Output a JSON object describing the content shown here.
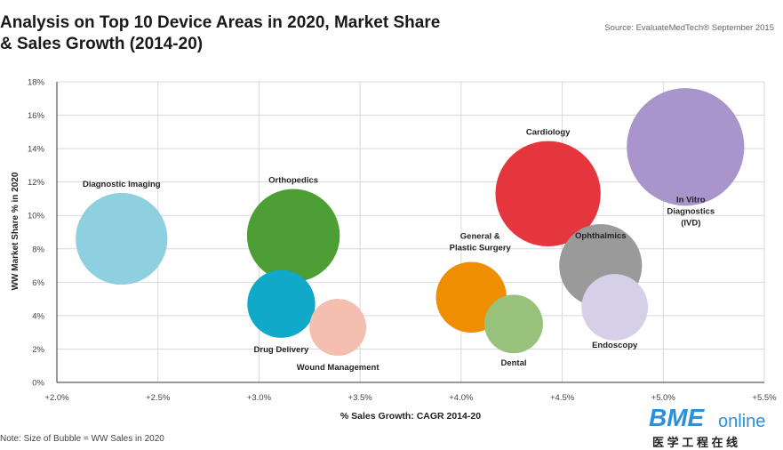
{
  "header": {
    "title_line1": "Analysis on Top 10 Device Areas in 2020, Market Share",
    "title_line2": "& Sales Growth (2014-20)",
    "source": "Source: EvaluateMedTech® September 2015"
  },
  "footer": {
    "note": "Note: Size of Bubble = WW Sales in 2020"
  },
  "logo": {
    "brand": "BME",
    "brand_suffix": "online",
    "tagline": "医 学 工 程 在 线",
    "brand_color": "#2d8fd5"
  },
  "chart_data": {
    "type": "scatter",
    "bubble": true,
    "xlabel": "% Sales Growth: CAGR 2014-20",
    "ylabel": "WW Market Share % in 2020",
    "xlim": [
      2.0,
      5.5
    ],
    "ylim": [
      0,
      18
    ],
    "x_ticks": [
      2.0,
      2.5,
      3.0,
      3.5,
      4.0,
      4.5,
      5.0,
      5.5
    ],
    "x_tick_labels": [
      "+2.0%",
      "+2.5%",
      "+3.0%",
      "+3.5%",
      "+4.0%",
      "+4.5%",
      "+5.0%",
      "+5.5%"
    ],
    "y_ticks": [
      0,
      2,
      4,
      6,
      8,
      10,
      12,
      14,
      16,
      18
    ],
    "y_tick_labels": [
      "0%",
      "2%",
      "4%",
      "6%",
      "8%",
      "10%",
      "12%",
      "14%",
      "16%",
      "18%"
    ],
    "grid": true,
    "size_encoding": "WW Sales in 2020",
    "points": [
      {
        "name": "Diagnostic Imaging",
        "label_lines": [
          "Diagnostic Imaging"
        ],
        "x": 2.32,
        "y": 8.6,
        "size": 8.6,
        "color": "#8ecfe0"
      },
      {
        "name": "Orthopedics",
        "label_lines": [
          "Orthopedics"
        ],
        "x": 3.17,
        "y": 8.8,
        "size": 8.8,
        "color": "#4c9e35"
      },
      {
        "name": "Drug Delivery",
        "label_lines": [
          "Drug Delivery"
        ],
        "x": 3.11,
        "y": 4.7,
        "size": 4.7,
        "color": "#10a9c9"
      },
      {
        "name": "Wound Management",
        "label_lines": [
          "Wound Management"
        ],
        "x": 3.39,
        "y": 3.3,
        "size": 3.3,
        "color": "#f4bfb0"
      },
      {
        "name": "General & Plastic Surgery",
        "label_lines": [
          "General &",
          "Plastic Surgery"
        ],
        "x": 4.05,
        "y": 5.1,
        "size": 5.1,
        "color": "#ee8e00"
      },
      {
        "name": "Dental",
        "label_lines": [
          "Dental"
        ],
        "x": 4.26,
        "y": 3.5,
        "size": 3.5,
        "color": "#98c17c"
      },
      {
        "name": "Cardiology",
        "label_lines": [
          "Cardiology"
        ],
        "x": 4.43,
        "y": 11.3,
        "size": 11.3,
        "color": "#e5353d"
      },
      {
        "name": "Ophthalmics",
        "label_lines": [
          "Ophthalmics"
        ],
        "x": 4.69,
        "y": 7.0,
        "size": 7.0,
        "color": "#9a9a9a"
      },
      {
        "name": "Endoscopy",
        "label_lines": [
          "Endoscopy"
        ],
        "x": 4.76,
        "y": 4.5,
        "size": 4.5,
        "color": "#d6cfe8"
      },
      {
        "name": "In Vitro Diagnostics (IVD)",
        "label_lines": [
          "In Vitro",
          "Diagnostics",
          "(IVD)"
        ],
        "x": 5.11,
        "y": 14.1,
        "size": 14.1,
        "color": "#a995cb"
      }
    ]
  }
}
